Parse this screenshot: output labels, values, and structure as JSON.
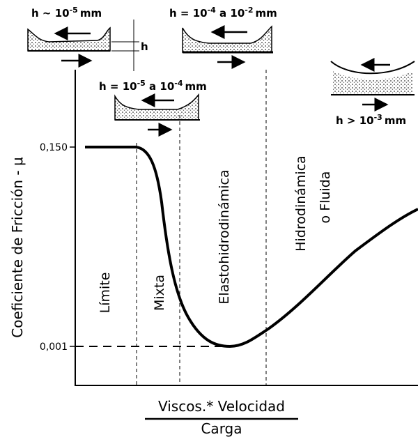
{
  "film_labels": [
    {
      "prefix": "h ~ 10",
      "exp": "-5",
      "suffix": "mm"
    },
    {
      "prefix": "h = 10",
      "exp": "-4",
      "middle": " a 10",
      "exp2": "-2",
      "suffix": "mm"
    },
    {
      "prefix": "h = 10",
      "exp": "-5",
      "middle": " a 10",
      "exp2": "-4",
      "suffix": "mm"
    },
    {
      "prefix": "h > 10",
      "exp": "-3",
      "suffix": "mm"
    }
  ],
  "gap_label": "h",
  "y_axis": {
    "label": "Coeficiente de Fricción - μ",
    "ticks": [
      "0,150",
      "0,001"
    ]
  },
  "regions": [
    "Límite",
    "Mixta",
    "Elastohidrodinámica",
    "Hidrodinámica",
    "o Fluida"
  ],
  "x_axis": {
    "numerator": "Viscos.* Velocidad",
    "denominator": "Carga"
  }
}
